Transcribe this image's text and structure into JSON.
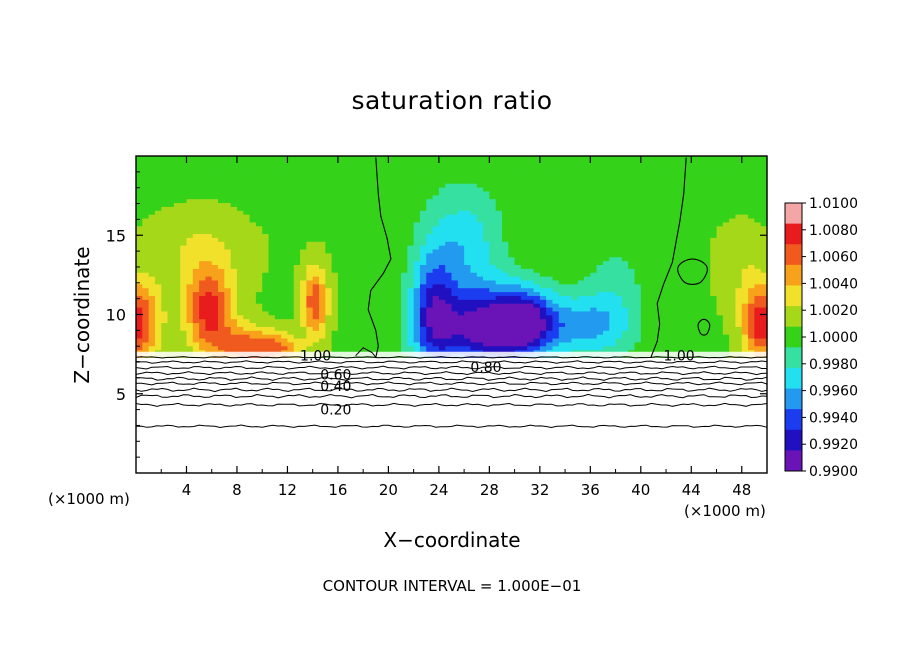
{
  "chart_data": {
    "type": "heatmap",
    "title": "saturation ratio",
    "xlabel": "X−coordinate",
    "ylabel": "Z−coordinate",
    "x_unit_label": "(×1000 m)",
    "footer": "CONTOUR INTERVAL = 1.000E−01",
    "xlim": [
      0,
      50
    ],
    "ylim": [
      0,
      20
    ],
    "xticks": [
      {
        "v": 4,
        "label": "4"
      },
      {
        "v": 8,
        "label": "8"
      },
      {
        "v": 12,
        "label": "12"
      },
      {
        "v": 16,
        "label": "16"
      },
      {
        "v": 20,
        "label": "20"
      },
      {
        "v": 24,
        "label": "24"
      },
      {
        "v": 28,
        "label": "28"
      },
      {
        "v": 32,
        "label": "32"
      },
      {
        "v": 36,
        "label": "36"
      },
      {
        "v": 40,
        "label": "40"
      },
      {
        "v": 44,
        "label": "44"
      },
      {
        "v": 48,
        "label": "48"
      }
    ],
    "yticks": [
      {
        "v": 5,
        "label": "5"
      },
      {
        "v": 10,
        "label": "10"
      },
      {
        "v": 15,
        "label": "15"
      }
    ],
    "colorbar": {
      "labels": [
        "1.0100",
        "1.0080",
        "1.0060",
        "1.0040",
        "1.0020",
        "1.0000",
        "0.9980",
        "0.9960",
        "0.9940",
        "0.9920",
        "0.9900"
      ],
      "colors_top_to_bottom": [
        "#f4a6a6",
        "#e81c1c",
        "#f05a1e",
        "#f7a21a",
        "#f1e12a",
        "#a6d81a",
        "#35d21a",
        "#36e0a0",
        "#22e0f0",
        "#229af0",
        "#1c3cf0",
        "#2010c0",
        "#6a14b8"
      ]
    },
    "contour_labels": [
      {
        "text": "1.00",
        "x": 13.0,
        "y": 7.4
      },
      {
        "text": "0.80",
        "x": 26.5,
        "y": 6.7
      },
      {
        "text": "1.00",
        "x": 41.8,
        "y": 7.4
      },
      {
        "text": "0.60",
        "x": 14.6,
        "y": 6.2
      },
      {
        "text": "0.40",
        "x": 14.6,
        "y": 5.5
      },
      {
        "text": "0.20",
        "x": 14.6,
        "y": 4.0
      }
    ],
    "fields": {
      "cloud_base_z": 7.3,
      "background_value": 1.0005,
      "warm_cells": [
        {
          "x": 0.0,
          "z": 9.5,
          "sx": 1.8,
          "sz": 2.5,
          "a": 0.0075
        },
        {
          "x": 5.8,
          "z": 10.2,
          "sx": 1.8,
          "sz": 2.7,
          "a": 0.007
        },
        {
          "x": 8.5,
          "z": 8.0,
          "sx": 2.0,
          "sz": 1.4,
          "a": 0.0052
        },
        {
          "x": 11.2,
          "z": 7.9,
          "sx": 1.8,
          "sz": 1.0,
          "a": 0.0052
        },
        {
          "x": 14.2,
          "z": 10.8,
          "sx": 1.0,
          "sz": 2.2,
          "a": 0.0062
        },
        {
          "x": 5.0,
          "z": 14.0,
          "sx": 4.0,
          "sz": 3.0,
          "a": 0.0018
        },
        {
          "x": 49.5,
          "z": 9.5,
          "sx": 1.4,
          "sz": 2.4,
          "a": 0.0075
        },
        {
          "x": 48.0,
          "z": 13.0,
          "sx": 2.0,
          "sz": 3.0,
          "a": 0.0014
        }
      ],
      "dry_cells": [
        {
          "x": 27.8,
          "z": 9.2,
          "sx": 4.0,
          "sz": 2.6,
          "a": 0.0102
        },
        {
          "x": 23.5,
          "z": 10.2,
          "sx": 1.8,
          "sz": 3.8,
          "a": 0.0066
        },
        {
          "x": 31.0,
          "z": 9.6,
          "sx": 2.2,
          "sz": 2.0,
          "a": 0.0062
        },
        {
          "x": 26.0,
          "z": 14.5,
          "sx": 3.0,
          "sz": 3.2,
          "a": 0.0038
        },
        {
          "x": 35.5,
          "z": 9.3,
          "sx": 3.4,
          "sz": 2.0,
          "a": 0.0045
        },
        {
          "x": 38.0,
          "z": 11.5,
          "sx": 2.5,
          "sz": 3.5,
          "a": 0.0018
        }
      ]
    }
  }
}
